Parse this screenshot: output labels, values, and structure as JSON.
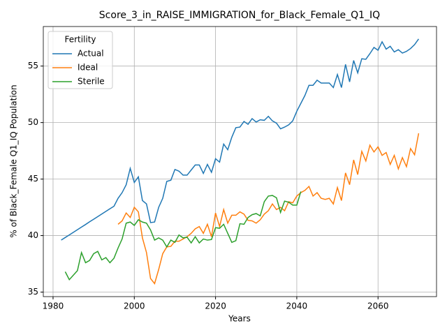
{
  "chart_data": {
    "type": "line",
    "title": "Score_3_in_RAISE_IMMIGRATION_for_Black_Female_Q1_IQ",
    "xlabel": "Years",
    "ylabel": "% of Black_Female Q1_IQ Population",
    "legend_title": "Fertility",
    "legend": "upper left",
    "grid": true,
    "xlim": [
      1977.6,
      2074.4
    ],
    "ylim": [
      34.6,
      58.5
    ],
    "xticks": [
      1980,
      2000,
      2020,
      2040,
      2060
    ],
    "yticks": [
      35,
      40,
      45,
      50,
      55
    ],
    "x": [
      1982,
      1983,
      1984,
      1985,
      1986,
      1987,
      1988,
      1989,
      1990,
      1991,
      1992,
      1993,
      1994,
      1995,
      1996,
      1997,
      1998,
      1999,
      2000,
      2001,
      2002,
      2003,
      2004,
      2005,
      2006,
      2007,
      2008,
      2009,
      2010,
      2011,
      2012,
      2013,
      2014,
      2015,
      2016,
      2017,
      2018,
      2019,
      2020,
      2021,
      2022,
      2023,
      2024,
      2025,
      2026,
      2027,
      2028,
      2029,
      2030,
      2031,
      2032,
      2033,
      2034,
      2035,
      2036,
      2037,
      2038,
      2039,
      2040,
      2041,
      2042,
      2043,
      2044,
      2045,
      2046,
      2047,
      2048,
      2049,
      2050,
      2051,
      2052,
      2053,
      2054,
      2055,
      2056,
      2057,
      2058,
      2059,
      2060,
      2061,
      2062,
      2063,
      2064,
      2065,
      2066,
      2067,
      2068,
      2069,
      2070
    ],
    "series": [
      {
        "name": "Actual",
        "color": "#1f77b4",
        "values": [
          39.6,
          39.83,
          40.06,
          40.29,
          40.52,
          40.75,
          40.98,
          41.22,
          41.45,
          41.68,
          41.91,
          42.14,
          42.37,
          42.6,
          43.3,
          43.8,
          44.5,
          45.95,
          44.7,
          45.2,
          43.1,
          42.8,
          41.15,
          41.2,
          42.5,
          43.3,
          44.8,
          44.9,
          45.85,
          45.7,
          45.35,
          45.35,
          45.8,
          46.25,
          46.25,
          45.5,
          46.3,
          45.6,
          46.8,
          46.5,
          48.1,
          47.6,
          48.7,
          49.55,
          49.6,
          50.1,
          49.85,
          50.35,
          50.05,
          50.25,
          50.2,
          50.55,
          50.15,
          49.95,
          49.45,
          49.6,
          49.8,
          50.15,
          51.0,
          51.7,
          52.4,
          53.3,
          53.3,
          53.75,
          53.5,
          53.5,
          53.5,
          53.1,
          54.25,
          53.1,
          55.15,
          53.6,
          55.5,
          54.4,
          55.65,
          55.6,
          56.1,
          56.65,
          56.4,
          57.15,
          56.5,
          56.75,
          56.25,
          56.45,
          56.15,
          56.3,
          56.55,
          56.9,
          57.4
        ]
      },
      {
        "name": "Ideal",
        "color": "#ff7f0e",
        "values": [
          null,
          null,
          null,
          null,
          null,
          null,
          null,
          null,
          null,
          null,
          null,
          null,
          null,
          null,
          41.0,
          41.3,
          42.0,
          41.6,
          42.5,
          42.1,
          39.8,
          38.5,
          36.2,
          35.75,
          37.0,
          38.4,
          39.0,
          39.05,
          39.5,
          39.5,
          39.7,
          39.9,
          40.2,
          40.6,
          40.8,
          40.2,
          41.0,
          39.9,
          42.0,
          40.8,
          42.3,
          41.1,
          41.8,
          41.8,
          42.1,
          41.9,
          41.35,
          41.3,
          41.1,
          41.4,
          41.9,
          42.2,
          42.8,
          42.3,
          42.5,
          42.2,
          43.0,
          42.9,
          43.5,
          43.8,
          44.0,
          44.35,
          43.5,
          43.8,
          43.3,
          43.2,
          43.3,
          42.8,
          44.25,
          43.1,
          45.55,
          44.5,
          46.7,
          45.4,
          47.45,
          46.6,
          48.0,
          47.4,
          47.85,
          47.1,
          47.35,
          46.3,
          47.1,
          45.9,
          46.9,
          46.1,
          47.7,
          47.15,
          49.05
        ]
      },
      {
        "name": "Sterile",
        "color": "#2ca02c",
        "values": [
          null,
          36.8,
          36.1,
          36.5,
          36.9,
          38.5,
          37.6,
          37.8,
          38.4,
          38.6,
          37.85,
          38.05,
          37.6,
          38.0,
          38.9,
          39.7,
          41.1,
          41.2,
          40.9,
          41.4,
          41.2,
          41.1,
          40.5,
          39.6,
          39.8,
          39.6,
          39.0,
          39.6,
          39.4,
          40.05,
          39.8,
          39.85,
          39.35,
          39.9,
          39.35,
          39.7,
          39.6,
          39.65,
          40.7,
          40.65,
          41.0,
          40.2,
          39.4,
          39.55,
          41.05,
          41.0,
          41.6,
          41.85,
          41.95,
          41.75,
          43.0,
          43.5,
          43.55,
          43.35,
          42.05,
          43.05,
          42.95,
          42.7,
          42.7,
          43.9,
          null,
          null,
          null,
          null,
          null,
          null,
          null,
          null,
          null,
          null,
          null,
          null,
          null,
          null,
          null,
          null,
          null,
          null,
          null,
          null,
          null,
          null,
          null,
          null,
          null,
          null,
          null,
          null,
          null
        ]
      }
    ]
  }
}
